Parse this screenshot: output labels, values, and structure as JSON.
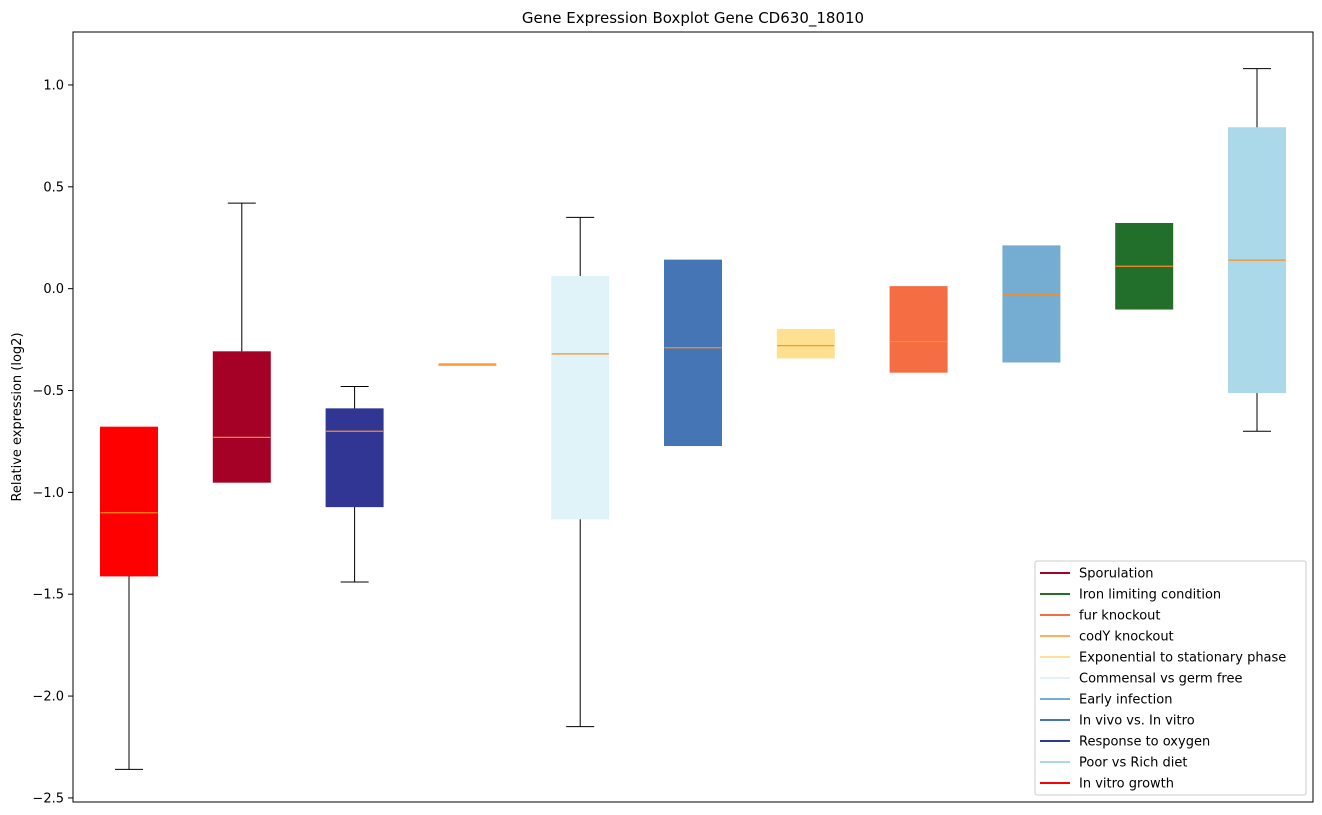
{
  "chart_data": {
    "type": "boxplot",
    "title": "Gene Expression Boxplot Gene CD630_18010",
    "xlabel": "",
    "ylabel": "Relative expression (log2)",
    "ylim": [
      -2.52,
      1.26
    ],
    "yticks": [
      1.0,
      0.5,
      0.0,
      -0.5,
      -1.0,
      -1.5,
      -2.0,
      -2.5
    ],
    "ytick_labels": [
      "1.0",
      "0.5",
      "0.0",
      "−0.5",
      "−1.0",
      "−1.5",
      "−2.0",
      "−2.5"
    ],
    "median_color": "#ff8c1a",
    "boxes": [
      {
        "condition": "In vitro growth",
        "color": "#ff0000",
        "whisker_low": -2.36,
        "q1": -1.41,
        "median": -1.1,
        "q3": -0.68,
        "whisker_high": -0.68
      },
      {
        "condition": "Sporulation",
        "color": "#a50026",
        "whisker_low": -0.95,
        "q1": -0.95,
        "median": -0.73,
        "q3": -0.31,
        "whisker_high": 0.42
      },
      {
        "condition": "Response to oxygen",
        "color": "#313695",
        "whisker_low": -1.44,
        "q1": -1.07,
        "median": -0.7,
        "q3": -0.59,
        "whisker_high": -0.48
      },
      {
        "condition": "codY knockout",
        "color": "#fdae61",
        "whisker_low": -0.37,
        "q1": -0.37,
        "median": -0.37,
        "q3": -0.37,
        "whisker_high": -0.37
      },
      {
        "condition": "Commensal vs germ free",
        "color": "#e0f3f8",
        "whisker_low": -2.15,
        "q1": -1.13,
        "median": -0.32,
        "q3": 0.06,
        "whisker_high": 0.35
      },
      {
        "condition": "In vivo vs. In vitro",
        "color": "#4575b4",
        "whisker_low": -0.77,
        "q1": -0.77,
        "median": -0.29,
        "q3": 0.14,
        "whisker_high": 0.14
      },
      {
        "condition": "Exponential to stationary phase",
        "color": "#fee090",
        "whisker_low": -0.34,
        "q1": -0.34,
        "median": -0.28,
        "q3": -0.2,
        "whisker_high": -0.2
      },
      {
        "condition": "fur knockout",
        "color": "#f46d43",
        "whisker_low": -0.41,
        "q1": -0.41,
        "median": -0.26,
        "q3": 0.01,
        "whisker_high": 0.01
      },
      {
        "condition": "Early infection",
        "color": "#74add1",
        "whisker_low": -0.36,
        "q1": -0.36,
        "median": -0.03,
        "q3": 0.21,
        "whisker_high": 0.21
      },
      {
        "condition": "Iron limiting condition",
        "color": "#226e2b",
        "whisker_low": -0.1,
        "q1": -0.1,
        "median": 0.11,
        "q3": 0.32,
        "whisker_high": 0.32
      },
      {
        "condition": "Poor vs Rich diet",
        "color": "#abd9e9",
        "whisker_low": -0.7,
        "q1": -0.51,
        "median": 0.14,
        "q3": 0.79,
        "whisker_high": 1.08
      }
    ],
    "legend": {
      "position": "lower-right",
      "entries": [
        {
          "label": "Sporulation",
          "color": "#a50026"
        },
        {
          "label": "Iron limiting condition",
          "color": "#226e2b"
        },
        {
          "label": "fur knockout",
          "color": "#f46d43"
        },
        {
          "label": "codY knockout",
          "color": "#fdae61"
        },
        {
          "label": "Exponential to stationary phase",
          "color": "#fee090"
        },
        {
          "label": "Commensal vs germ free",
          "color": "#e0f3f8"
        },
        {
          "label": "Early infection",
          "color": "#74add1"
        },
        {
          "label": "In vivo vs. In vitro",
          "color": "#4575b4"
        },
        {
          "label": "Response to oxygen",
          "color": "#313695"
        },
        {
          "label": "Poor vs Rich diet",
          "color": "#abd9e9"
        },
        {
          "label": "In vitro growth",
          "color": "#ff0000"
        }
      ]
    }
  }
}
